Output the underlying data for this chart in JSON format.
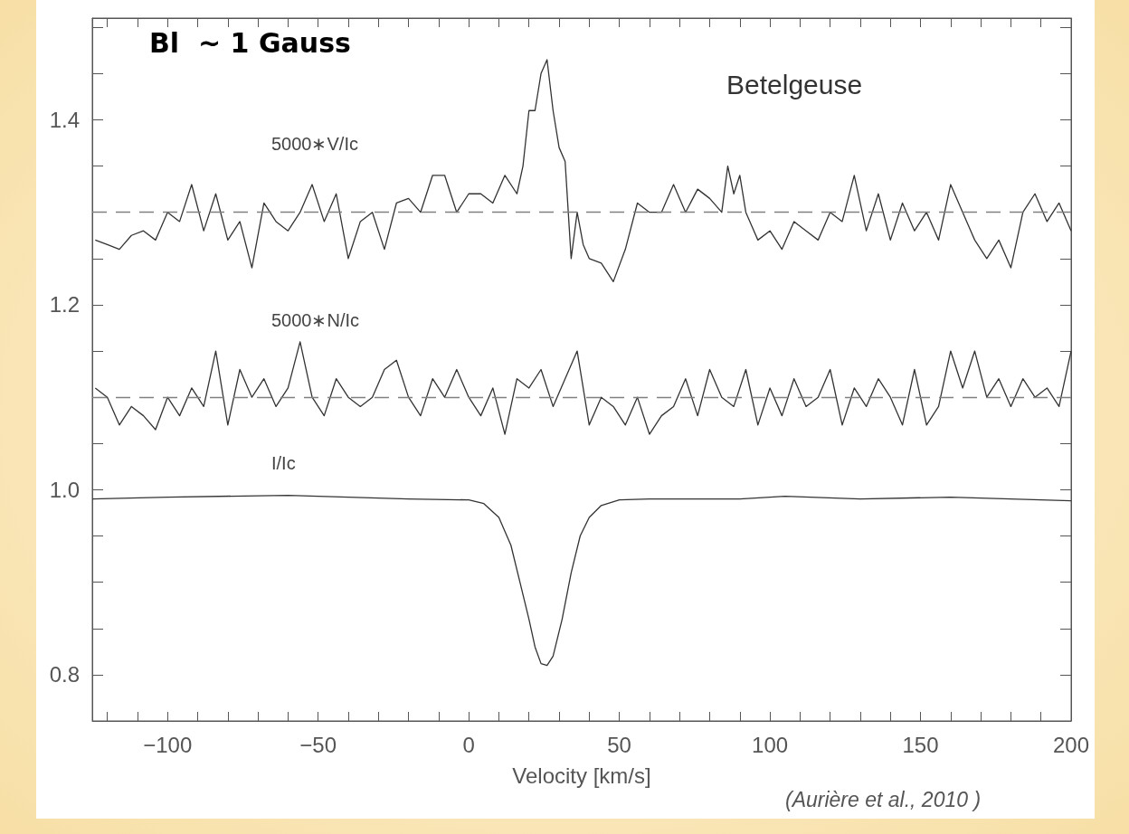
{
  "chart_data": {
    "type": "line",
    "xlabel": "Velocity [km/s]",
    "annotations": [
      "Bl  ~ 1 Gauss",
      "Betelgeuse",
      "(Aurière et al., 2010 )"
    ],
    "xlim": [
      -125,
      200
    ],
    "xticks": [
      {
        "value": -120,
        "label": null
      },
      {
        "value": -110,
        "label": null
      },
      -100,
      {
        "value": -90,
        "label": null
      },
      {
        "value": -80,
        "label": null
      },
      {
        "value": -70,
        "label": null
      },
      {
        "value": -60,
        "label": null
      },
      -50,
      {
        "value": -40,
        "label": null
      },
      {
        "value": -30,
        "label": null
      },
      {
        "value": -20,
        "label": null
      },
      {
        "value": -10,
        "label": null
      },
      0,
      {
        "value": 10,
        "label": null
      },
      {
        "value": 20,
        "label": null
      },
      {
        "value": 30,
        "label": null
      },
      {
        "value": 40,
        "label": null
      },
      50,
      {
        "value": 60,
        "label": null
      },
      {
        "value": 70,
        "label": null
      },
      {
        "value": 80,
        "label": null
      },
      {
        "value": 90,
        "label": null
      },
      100,
      {
        "value": 110,
        "label": null
      },
      {
        "value": 120,
        "label": null
      },
      {
        "value": 130,
        "label": null
      },
      {
        "value": 140,
        "label": null
      },
      150,
      {
        "value": 160,
        "label": null
      },
      {
        "value": 170,
        "label": null
      },
      {
        "value": 180,
        "label": null
      },
      {
        "value": 190,
        "label": null
      },
      200
    ],
    "ylim": [
      0.75,
      1.51
    ],
    "yticks": [
      0.8,
      {
        "value": 0.85,
        "label": null
      },
      {
        "value": 0.9,
        "label": null
      },
      {
        "value": 0.95,
        "label": null
      },
      {
        "value": 1,
        "label": "1.0"
      },
      {
        "value": 1.05,
        "label": null
      },
      {
        "value": 1.1,
        "label": null
      },
      {
        "value": 1.15,
        "label": null
      },
      1.2,
      {
        "value": 1.25,
        "label": null
      },
      {
        "value": 1.3,
        "label": null
      },
      {
        "value": 1.35,
        "label": null
      },
      1.4,
      {
        "value": 1.45,
        "label": null
      },
      {
        "value": 1.5,
        "label": null
      }
    ],
    "grid": false,
    "legend": false,
    "marker": "none",
    "line_style": "solid",
    "ref_lines": [
      {
        "axis": "y",
        "value": 1.3,
        "label": null,
        "color": "#808080",
        "line_style": "dashed"
      },
      {
        "axis": "y",
        "value": 1.1,
        "label": null,
        "color": "#808080",
        "line_style": "dashed"
      }
    ],
    "series": [
      {
        "name": "5000∗V/Ic",
        "color": "#333333",
        "x": [
          -124,
          -120,
          -116,
          -112,
          -108,
          -104,
          -100,
          -96,
          -92,
          -88,
          -84,
          -80,
          -76,
          -72,
          -68,
          -64,
          -60,
          -56,
          -52,
          -48,
          -44,
          -40,
          -36,
          -32,
          -28,
          -24,
          -20,
          -16,
          -12,
          -8,
          -4,
          0,
          4,
          8,
          12,
          16,
          18,
          20,
          22,
          24,
          26,
          28,
          30,
          32,
          34,
          36,
          38,
          40,
          44,
          48,
          52,
          56,
          60,
          64,
          68,
          72,
          76,
          80,
          84,
          86,
          88,
          90,
          92,
          96,
          100,
          104,
          108,
          112,
          116,
          120,
          124,
          128,
          132,
          136,
          140,
          144,
          148,
          152,
          156,
          160,
          164,
          168,
          172,
          176,
          180,
          184,
          188,
          192,
          196,
          200
        ],
        "values": [
          1.27,
          1.265,
          1.26,
          1.275,
          1.28,
          1.27,
          1.3,
          1.29,
          1.33,
          1.28,
          1.32,
          1.27,
          1.29,
          1.24,
          1.31,
          1.29,
          1.28,
          1.3,
          1.33,
          1.29,
          1.32,
          1.25,
          1.29,
          1.3,
          1.26,
          1.31,
          1.315,
          1.3,
          1.34,
          1.34,
          1.3,
          1.32,
          1.32,
          1.31,
          1.34,
          1.32,
          1.35,
          1.41,
          1.41,
          1.45,
          1.465,
          1.41,
          1.37,
          1.355,
          1.25,
          1.3,
          1.265,
          1.25,
          1.245,
          1.225,
          1.26,
          1.31,
          1.3,
          1.3,
          1.33,
          1.3,
          1.325,
          1.315,
          1.3,
          1.35,
          1.32,
          1.34,
          1.3,
          1.27,
          1.28,
          1.26,
          1.29,
          1.28,
          1.27,
          1.3,
          1.29,
          1.34,
          1.28,
          1.32,
          1.27,
          1.31,
          1.28,
          1.3,
          1.27,
          1.33,
          1.3,
          1.27,
          1.25,
          1.27,
          1.24,
          1.3,
          1.32,
          1.29,
          1.31,
          1.28
        ]
      },
      {
        "name": "5000∗N/Ic",
        "color": "#333333",
        "x": [
          -124,
          -120,
          -116,
          -112,
          -108,
          -104,
          -100,
          -96,
          -92,
          -88,
          -84,
          -80,
          -76,
          -72,
          -68,
          -64,
          -60,
          -56,
          -52,
          -48,
          -44,
          -40,
          -36,
          -32,
          -28,
          -24,
          -20,
          -16,
          -12,
          -8,
          -4,
          0,
          4,
          8,
          12,
          16,
          20,
          24,
          28,
          32,
          36,
          40,
          44,
          48,
          52,
          56,
          60,
          64,
          68,
          72,
          76,
          80,
          84,
          88,
          92,
          96,
          100,
          104,
          108,
          112,
          116,
          120,
          124,
          128,
          132,
          136,
          140,
          144,
          148,
          152,
          156,
          160,
          164,
          168,
          172,
          176,
          180,
          184,
          188,
          192,
          196,
          200
        ],
        "values": [
          1.11,
          1.1,
          1.07,
          1.09,
          1.08,
          1.065,
          1.1,
          1.08,
          1.11,
          1.09,
          1.15,
          1.07,
          1.13,
          1.1,
          1.12,
          1.09,
          1.11,
          1.16,
          1.1,
          1.08,
          1.12,
          1.1,
          1.09,
          1.1,
          1.13,
          1.14,
          1.1,
          1.08,
          1.12,
          1.1,
          1.13,
          1.1,
          1.08,
          1.11,
          1.06,
          1.12,
          1.11,
          1.13,
          1.09,
          1.12,
          1.15,
          1.07,
          1.1,
          1.09,
          1.07,
          1.1,
          1.06,
          1.08,
          1.09,
          1.12,
          1.08,
          1.13,
          1.1,
          1.09,
          1.13,
          1.07,
          1.11,
          1.08,
          1.12,
          1.09,
          1.1,
          1.13,
          1.07,
          1.11,
          1.09,
          1.12,
          1.1,
          1.07,
          1.13,
          1.07,
          1.09,
          1.15,
          1.11,
          1.15,
          1.1,
          1.12,
          1.09,
          1.12,
          1.1,
          1.11,
          1.09,
          1.15
        ]
      },
      {
        "name": "I/Ic",
        "color": "#333333",
        "x": [
          -125,
          -100,
          -60,
          -20,
          0,
          5,
          10,
          14,
          17,
          20,
          22,
          24,
          26,
          28,
          31,
          34,
          37,
          40,
          44,
          50,
          60,
          90,
          105,
          130,
          160,
          200
        ],
        "values": [
          0.99,
          0.992,
          0.994,
          0.99,
          0.989,
          0.985,
          0.97,
          0.94,
          0.9,
          0.86,
          0.83,
          0.812,
          0.81,
          0.82,
          0.86,
          0.91,
          0.95,
          0.97,
          0.983,
          0.989,
          0.99,
          0.99,
          0.993,
          0.99,
          0.992,
          0.988
        ]
      }
    ]
  }
}
